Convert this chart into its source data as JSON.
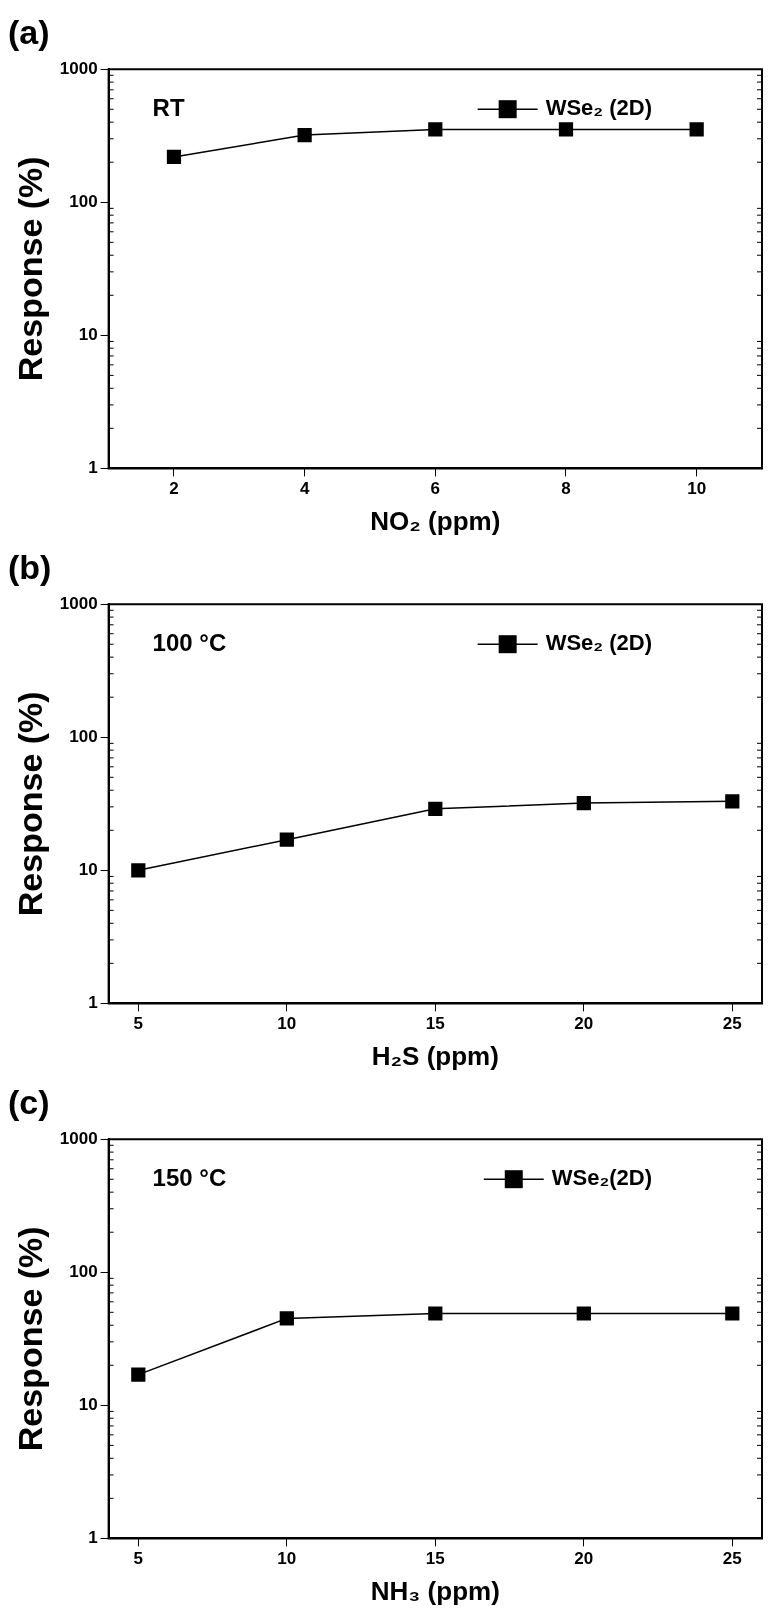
{
  "chart_data": [
    {
      "type": "line",
      "title": "(a)",
      "xlabel": "NO₂ (ppm)",
      "ylabel": "Response (%)",
      "annotations": [
        "RT"
      ],
      "log": "y",
      "legend": "top right",
      "marker": "square",
      "xlim": [
        1,
        11
      ],
      "xticks": [
        2,
        4,
        6,
        8,
        10
      ],
      "ylim": [
        1,
        1000
      ],
      "yticks": [
        1,
        10,
        100,
        1000
      ],
      "series": [
        {
          "name": "WSe₂ (2D)",
          "color": "#000000",
          "x": [
            2,
            4,
            6,
            8,
            10
          ],
          "values": [
            219,
            320,
            353,
            353,
            353
          ]
        }
      ]
    },
    {
      "type": "line",
      "title": "(b)",
      "xlabel": "H₂S (ppm)",
      "ylabel": "Response (%)",
      "annotations": [
        "100 °C"
      ],
      "log": "y",
      "legend": "top right",
      "marker": "square",
      "xlim": [
        4,
        26
      ],
      "xticks": [
        5,
        10,
        15,
        20,
        25
      ],
      "ylim": [
        1,
        1000
      ],
      "yticks": [
        1,
        10,
        100,
        1000
      ],
      "series": [
        {
          "name": "WSe₂ (2D)",
          "color": "#000000",
          "x": [
            5,
            10,
            15,
            20,
            25
          ],
          "values": [
            10,
            17,
            29,
            32,
            33
          ]
        }
      ]
    },
    {
      "type": "line",
      "title": "(c)",
      "xlabel": "NH₃ (ppm)",
      "ylabel": "Response (%)",
      "annotations": [
        "150 °C"
      ],
      "log": "y",
      "legend": "top right",
      "marker": "square",
      "xlim": [
        4,
        26
      ],
      "xticks": [
        5,
        10,
        15,
        20,
        25
      ],
      "ylim": [
        1,
        1000
      ],
      "yticks": [
        1,
        10,
        100,
        1000
      ],
      "series": [
        {
          "name": "WSe₂(2D)",
          "color": "#000000",
          "x": [
            5,
            10,
            15,
            20,
            25
          ],
          "values": [
            17,
            45,
            49,
            49,
            49
          ]
        }
      ]
    }
  ]
}
